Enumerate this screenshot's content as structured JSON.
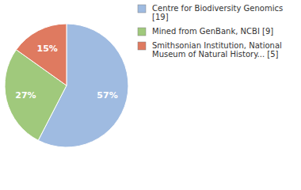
{
  "chart_data": {
    "type": "pie",
    "categories": [
      "Centre for Biodiversity Genomics [19]",
      "Mined from GenBank, NCBI [9]",
      "Smithsonian Institution, National Museum of Natural History... [5]"
    ],
    "values": [
      57,
      27,
      15
    ],
    "value_labels": [
      "57%",
      "27%",
      "15%"
    ],
    "colors": [
      "#9fbbe1",
      "#a0c97c",
      "#df7a60"
    ],
    "data_labels": true,
    "legend": "top-right"
  }
}
